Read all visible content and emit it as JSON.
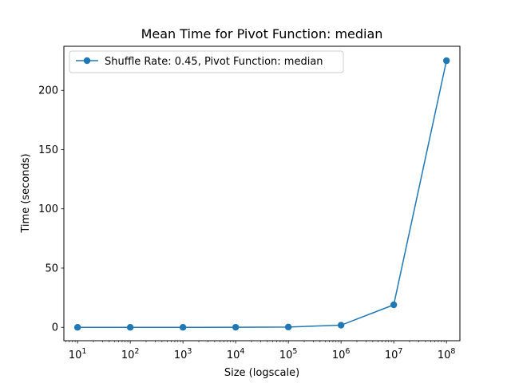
{
  "chart_data": {
    "type": "line",
    "title": "Mean Time for Pivot Function: median",
    "xlabel": "Size (logscale)",
    "ylabel": "Time (seconds)",
    "xscale": "log",
    "x": [
      10,
      100,
      1000,
      10000,
      100000,
      1000000,
      10000000,
      100000000
    ],
    "xlim": [
      5.5,
      180000000
    ],
    "ylim": [
      -11.3,
      237.2
    ],
    "grid": false,
    "legend_position": "top-left",
    "x_ticks": [
      {
        "base": "10",
        "exp": "1"
      },
      {
        "base": "10",
        "exp": "2"
      },
      {
        "base": "10",
        "exp": "3"
      },
      {
        "base": "10",
        "exp": "4"
      },
      {
        "base": "10",
        "exp": "5"
      },
      {
        "base": "10",
        "exp": "6"
      },
      {
        "base": "10",
        "exp": "7"
      },
      {
        "base": "10",
        "exp": "8"
      }
    ],
    "y_ticks": [
      0,
      50,
      100,
      150,
      200
    ],
    "series": [
      {
        "name": "Shuffle Rate: 0.45, Pivot Function: median",
        "color": "#1f77b4",
        "marker": "circle",
        "values": [
          0.0,
          0.0,
          0.0,
          0.05,
          0.25,
          1.8,
          19.0,
          225.0
        ]
      }
    ]
  }
}
